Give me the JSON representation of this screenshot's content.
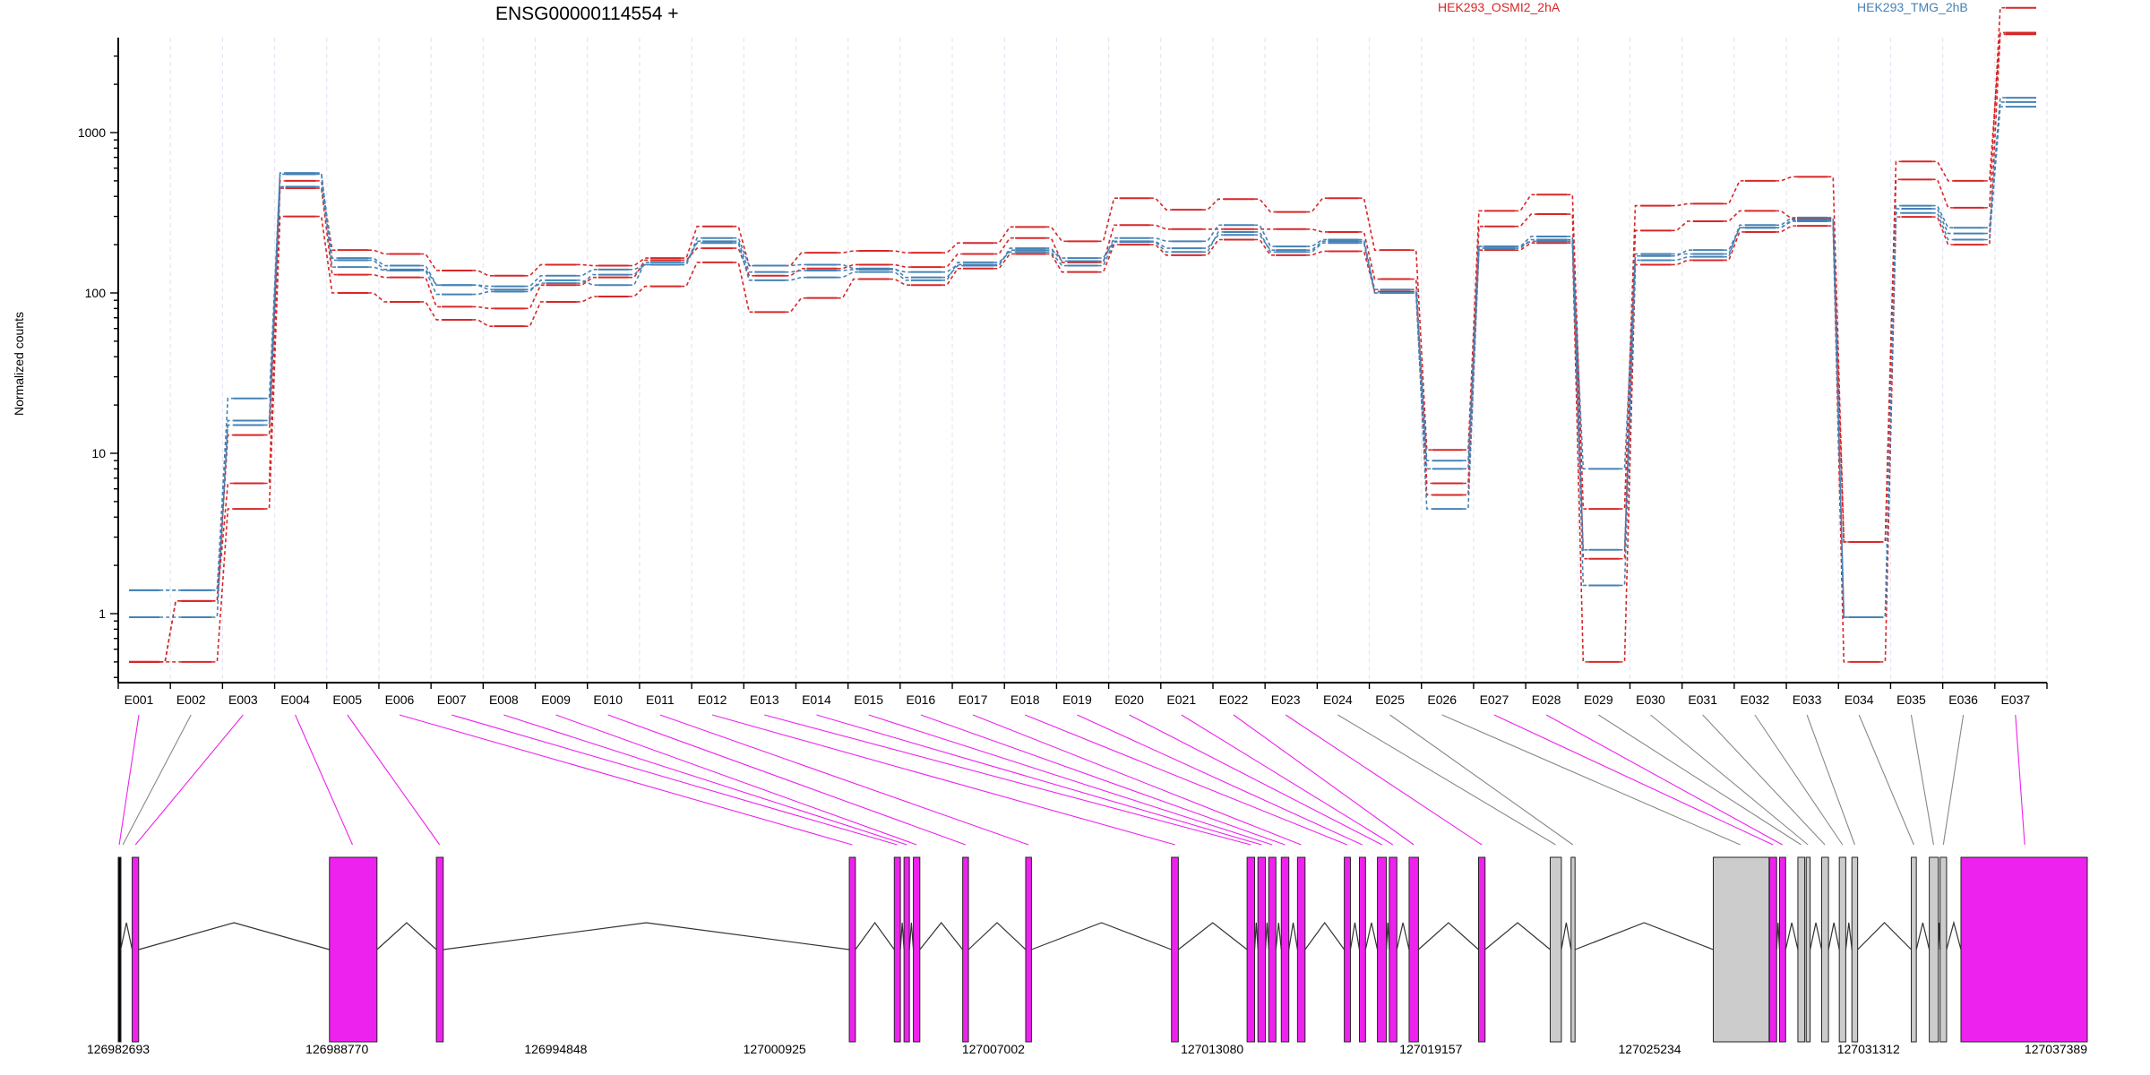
{
  "chart_data": {
    "type": "line",
    "title": "ENSG00000114554 +",
    "ylabel": "Normalized counts",
    "xlabel": "",
    "yscale": "log",
    "ylim": [
      0.5,
      8000
    ],
    "yticks": [
      "1",
      "10",
      "100",
      "1000"
    ],
    "yticks_values": [
      1,
      10,
      100,
      1000
    ],
    "grid": "vertical dashed lines at exon boundaries",
    "categories": [
      "E001",
      "E002",
      "E003",
      "E004",
      "E005",
      "E006",
      "E007",
      "E008",
      "E009",
      "E010",
      "E011",
      "E012",
      "E013",
      "E014",
      "E015",
      "E016",
      "E017",
      "E018",
      "E019",
      "E020",
      "E021",
      "E022",
      "E023",
      "E024",
      "E025",
      "E026",
      "E027",
      "E028",
      "E029",
      "E030",
      "E031",
      "E032",
      "E033",
      "E034",
      "E035",
      "E036",
      "E037"
    ],
    "legend": [
      {
        "name": "HEK293_OSMI2_2hA",
        "color": "#d62728"
      },
      {
        "name": "HEK293_TMG_2hB",
        "color": "#4682b4"
      }
    ],
    "series": [
      {
        "group": 0,
        "values": [
          0.5,
          0.5,
          4.5,
          300,
          100,
          88,
          68,
          62,
          88,
          95,
          110,
          155,
          76,
          93,
          122,
          112,
          142,
          175,
          135,
          200,
          172,
          215,
          172,
          182,
          102,
          5.5,
          185,
          205,
          0.5,
          150,
          160,
          240,
          262,
          0.5,
          298,
          200,
          4100
        ]
      },
      {
        "group": 0,
        "values": [
          0.5,
          1.2,
          6.5,
          450,
          130,
          125,
          82,
          80,
          112,
          125,
          160,
          190,
          128,
          142,
          150,
          145,
          175,
          220,
          155,
          265,
          250,
          250,
          250,
          240,
          122,
          6.5,
          260,
          310,
          2.2,
          245,
          280,
          325,
          290,
          2.8,
          510,
          340,
          6000
        ]
      },
      {
        "group": 0,
        "values": [
          0.5,
          1.2,
          13,
          500,
          185,
          175,
          138,
          128,
          150,
          148,
          165,
          260,
          148,
          178,
          183,
          178,
          205,
          258,
          210,
          390,
          330,
          385,
          320,
          390,
          185,
          10.5,
          325,
          410,
          4.5,
          350,
          360,
          500,
          530,
          2.8,
          660,
          500,
          4200
        ]
      },
      {
        "group": 1,
        "values": [
          1.4,
          1.4,
          22,
          550,
          165,
          148,
          112,
          110,
          128,
          140,
          150,
          220,
          148,
          150,
          142,
          125,
          148,
          190,
          158,
          220,
          210,
          265,
          195,
          215,
          105,
          9,
          195,
          225,
          2.5,
          170,
          185,
          255,
          285,
          0.95,
          350,
          255,
          1650
        ]
      },
      {
        "group": 1,
        "values": [
          0.95,
          0.95,
          16,
          560,
          145,
          138,
          98,
          102,
          120,
          112,
          155,
          205,
          120,
          125,
          135,
          120,
          155,
          180,
          148,
          208,
          180,
          240,
          180,
          205,
          100,
          4.5,
          190,
          215,
          1.5,
          160,
          168,
          265,
          295,
          0.95,
          315,
          215,
          1450
        ]
      },
      {
        "group": 1,
        "values": [
          1.4,
          1.4,
          15,
          460,
          160,
          140,
          112,
          105,
          115,
          130,
          150,
          210,
          135,
          138,
          140,
          135,
          150,
          185,
          165,
          210,
          190,
          230,
          185,
          210,
          100,
          8,
          195,
          210,
          8,
          175,
          175,
          255,
          280,
          0.95,
          335,
          235,
          1550
        ]
      }
    ],
    "gene_track": {
      "coordinate_labels": [
        "126982693",
        "126988770",
        "126994848",
        "127000925",
        "127007002",
        "127013080",
        "127019157",
        "127025234",
        "127031312",
        "127037389"
      ],
      "range": [
        126982693,
        127037389
      ],
      "exons": [
        {
          "start": 126982693,
          "end": 126982760,
          "type": "edge"
        },
        {
          "start": 126983080,
          "end": 126983260,
          "type": "tested"
        },
        {
          "start": 126988560,
          "end": 126989880,
          "type": "tested"
        },
        {
          "start": 126991530,
          "end": 126991720,
          "type": "tested"
        },
        {
          "start": 127003000,
          "end": 127003170,
          "type": "tested"
        },
        {
          "start": 127004250,
          "end": 127004420,
          "type": "tested"
        },
        {
          "start": 127004520,
          "end": 127004670,
          "type": "tested"
        },
        {
          "start": 127004780,
          "end": 127004960,
          "type": "tested"
        },
        {
          "start": 127006150,
          "end": 127006310,
          "type": "tested"
        },
        {
          "start": 127007900,
          "end": 127008060,
          "type": "tested"
        },
        {
          "start": 127011950,
          "end": 127012140,
          "type": "tested"
        },
        {
          "start": 127014050,
          "end": 127014260,
          "type": "tested"
        },
        {
          "start": 127014350,
          "end": 127014560,
          "type": "tested"
        },
        {
          "start": 127014650,
          "end": 127014850,
          "type": "tested"
        },
        {
          "start": 127015000,
          "end": 127015210,
          "type": "tested"
        },
        {
          "start": 127015450,
          "end": 127015660,
          "type": "tested"
        },
        {
          "start": 127016750,
          "end": 127016920,
          "type": "tested"
        },
        {
          "start": 127017170,
          "end": 127017340,
          "type": "tested"
        },
        {
          "start": 127017670,
          "end": 127017920,
          "type": "tested"
        },
        {
          "start": 127018000,
          "end": 127018210,
          "type": "tested"
        },
        {
          "start": 127018550,
          "end": 127018810,
          "type": "tested"
        },
        {
          "start": 127020480,
          "end": 127020660,
          "type": "tested"
        },
        {
          "start": 127022470,
          "end": 127022780,
          "type": "untested"
        },
        {
          "start": 127023050,
          "end": 127023160,
          "type": "untested"
        },
        {
          "start": 127027000,
          "end": 127028550,
          "type": "untested"
        },
        {
          "start": 127028560,
          "end": 127028760,
          "type": "tested"
        },
        {
          "start": 127028840,
          "end": 127029010,
          "type": "tested"
        },
        {
          "start": 127029350,
          "end": 127029540,
          "type": "untested"
        },
        {
          "start": 127029580,
          "end": 127029690,
          "type": "untested"
        },
        {
          "start": 127030010,
          "end": 127030200,
          "type": "untested"
        },
        {
          "start": 127030500,
          "end": 127030680,
          "type": "untested"
        },
        {
          "start": 127030850,
          "end": 127031010,
          "type": "untested"
        },
        {
          "start": 127032500,
          "end": 127032640,
          "type": "untested"
        },
        {
          "start": 127033000,
          "end": 127033250,
          "type": "untested"
        },
        {
          "start": 127033300,
          "end": 127033480,
          "type": "untested"
        },
        {
          "start": 127033880,
          "end": 127037389,
          "type": "tested"
        }
      ],
      "exon_connectors": [
        {
          "exon": "E001",
          "target": 126982720,
          "color": "#ee22ee"
        },
        {
          "exon": "E002",
          "target": 126982820,
          "color": "#888888"
        },
        {
          "exon": "E003",
          "target": 126983170,
          "color": "#ee22ee"
        },
        {
          "exon": "E004",
          "target": 126989200,
          "color": "#ee22ee"
        },
        {
          "exon": "E005",
          "target": 126991620,
          "color": "#ee22ee"
        },
        {
          "exon": "E006",
          "target": 127003080,
          "color": "#ee22ee"
        },
        {
          "exon": "E007",
          "target": 127004330,
          "color": "#ee22ee"
        },
        {
          "exon": "E008",
          "target": 127004600,
          "color": "#ee22ee"
        },
        {
          "exon": "E009",
          "target": 127004870,
          "color": "#ee22ee"
        },
        {
          "exon": "E010",
          "target": 127006230,
          "color": "#ee22ee"
        },
        {
          "exon": "E011",
          "target": 127007980,
          "color": "#ee22ee"
        },
        {
          "exon": "E012",
          "target": 127012050,
          "color": "#ee22ee"
        },
        {
          "exon": "E013",
          "target": 127014150,
          "color": "#ee22ee"
        },
        {
          "exon": "E014",
          "target": 127014450,
          "color": "#ee22ee"
        },
        {
          "exon": "E015",
          "target": 127014750,
          "color": "#ee22ee"
        },
        {
          "exon": "E016",
          "target": 127015100,
          "color": "#ee22ee"
        },
        {
          "exon": "E017",
          "target": 127015550,
          "color": "#ee22ee"
        },
        {
          "exon": "E018",
          "target": 127016830,
          "color": "#ee22ee"
        },
        {
          "exon": "E019",
          "target": 127017250,
          "color": "#ee22ee"
        },
        {
          "exon": "E020",
          "target": 127017800,
          "color": "#ee22ee"
        },
        {
          "exon": "E021",
          "target": 127018100,
          "color": "#ee22ee"
        },
        {
          "exon": "E022",
          "target": 127018680,
          "color": "#ee22ee"
        },
        {
          "exon": "E023",
          "target": 127020570,
          "color": "#ee22ee"
        },
        {
          "exon": "E024",
          "target": 127022620,
          "color": "#888888"
        },
        {
          "exon": "E025",
          "target": 127023100,
          "color": "#888888"
        },
        {
          "exon": "E026",
          "target": 127027750,
          "color": "#888888"
        },
        {
          "exon": "E027",
          "target": 127028660,
          "color": "#ee22ee"
        },
        {
          "exon": "E028",
          "target": 127028920,
          "color": "#ee22ee"
        },
        {
          "exon": "E029",
          "target": 127029440,
          "color": "#888888"
        },
        {
          "exon": "E030",
          "target": 127029630,
          "color": "#888888"
        },
        {
          "exon": "E031",
          "target": 127030100,
          "color": "#888888"
        },
        {
          "exon": "E032",
          "target": 127030590,
          "color": "#888888"
        },
        {
          "exon": "E033",
          "target": 127030930,
          "color": "#888888"
        },
        {
          "exon": "E034",
          "target": 127032570,
          "color": "#888888"
        },
        {
          "exon": "E035",
          "target": 127033120,
          "color": "#888888"
        },
        {
          "exon": "E036",
          "target": 127033390,
          "color": "#888888"
        },
        {
          "exon": "E037",
          "target": 127035650,
          "color": "#ee22ee"
        }
      ]
    },
    "colors": {
      "group0": "#d62728",
      "group1": "#4682b4",
      "tested_exon": "#ee22ee",
      "untested_exon": "#cccccc"
    }
  }
}
